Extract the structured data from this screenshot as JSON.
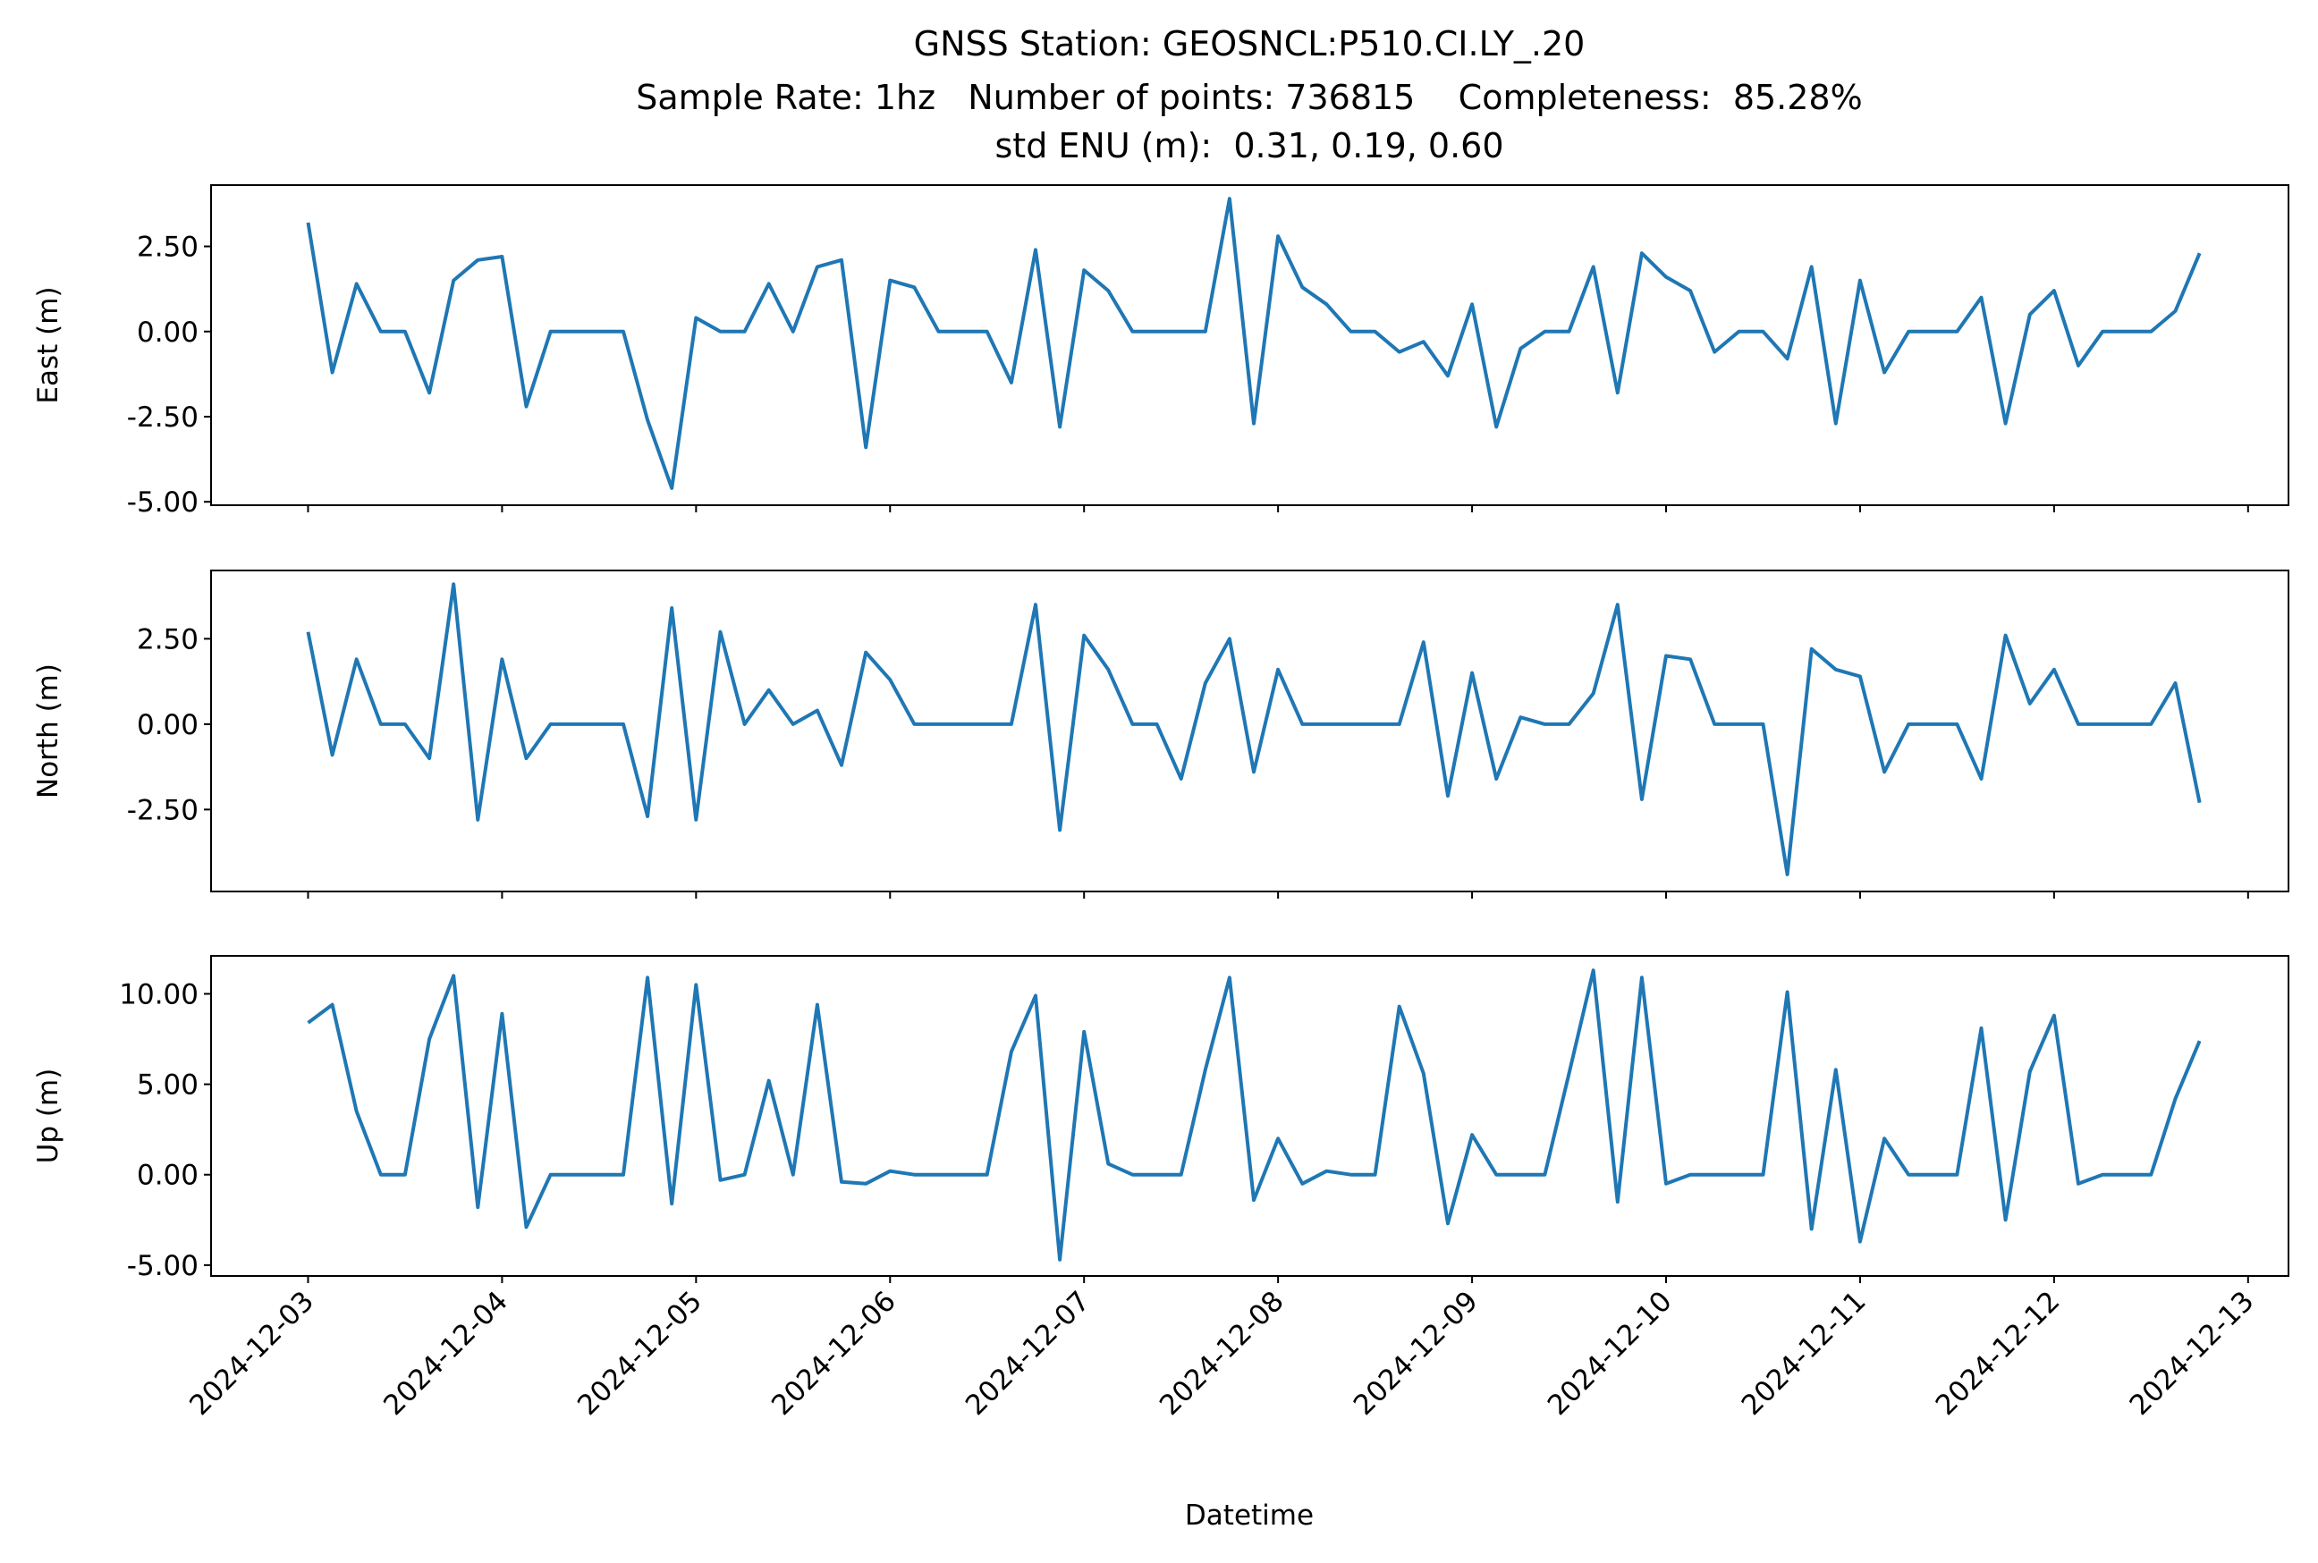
{
  "title": [
    "GNSS Station: GEOSNCL:P510.CI.LY_.20",
    "Sample Rate: 1hz   Number of points: 736815    Completeness:  85.28%",
    "std ENU (m):  0.31, 0.19, 0.60"
  ],
  "x_axis": {
    "label": "Datetime",
    "xlim": [
      "2024-12-02T12:00",
      "2024-12-13T05:00"
    ],
    "xticks": [
      "2024-12-03",
      "2024-12-04",
      "2024-12-05",
      "2024-12-06",
      "2024-12-07",
      "2024-12-08",
      "2024-12-09",
      "2024-12-10",
      "2024-12-11",
      "2024-12-12",
      "2024-12-13"
    ],
    "x": [
      "2024-12-03T00:00",
      "2024-12-03T03:00",
      "2024-12-03T06:00",
      "2024-12-03T09:00",
      "2024-12-03T12:00",
      "2024-12-03T15:00",
      "2024-12-03T18:00",
      "2024-12-03T21:00",
      "2024-12-04T00:00",
      "2024-12-04T03:00",
      "2024-12-04T06:00",
      "2024-12-04T09:00",
      "2024-12-04T12:00",
      "2024-12-04T15:00",
      "2024-12-04T18:00",
      "2024-12-04T21:00",
      "2024-12-05T00:00",
      "2024-12-05T03:00",
      "2024-12-05T06:00",
      "2024-12-05T09:00",
      "2024-12-05T12:00",
      "2024-12-05T15:00",
      "2024-12-05T18:00",
      "2024-12-05T21:00",
      "2024-12-06T00:00",
      "2024-12-06T03:00",
      "2024-12-06T06:00",
      "2024-12-06T09:00",
      "2024-12-06T12:00",
      "2024-12-06T15:00",
      "2024-12-06T18:00",
      "2024-12-06T21:00",
      "2024-12-07T00:00",
      "2024-12-07T03:00",
      "2024-12-07T06:00",
      "2024-12-07T09:00",
      "2024-12-07T12:00",
      "2024-12-07T15:00",
      "2024-12-07T18:00",
      "2024-12-07T21:00",
      "2024-12-08T00:00",
      "2024-12-08T03:00",
      "2024-12-08T06:00",
      "2024-12-08T09:00",
      "2024-12-08T12:00",
      "2024-12-08T15:00",
      "2024-12-08T18:00",
      "2024-12-08T21:00",
      "2024-12-09T00:00",
      "2024-12-09T03:00",
      "2024-12-09T06:00",
      "2024-12-09T09:00",
      "2024-12-09T12:00",
      "2024-12-09T15:00",
      "2024-12-09T18:00",
      "2024-12-09T21:00",
      "2024-12-10T00:00",
      "2024-12-10T03:00",
      "2024-12-10T06:00",
      "2024-12-10T09:00",
      "2024-12-10T12:00",
      "2024-12-10T15:00",
      "2024-12-10T18:00",
      "2024-12-10T21:00",
      "2024-12-11T00:00",
      "2024-12-11T03:00",
      "2024-12-11T06:00",
      "2024-12-11T09:00",
      "2024-12-11T12:00",
      "2024-12-11T15:00",
      "2024-12-11T18:00",
      "2024-12-11T21:00",
      "2024-12-12T00:00",
      "2024-12-12T03:00",
      "2024-12-12T06:00",
      "2024-12-12T09:00",
      "2024-12-12T12:00",
      "2024-12-12T15:00",
      "2024-12-12T18:00"
    ]
  },
  "chart_data": [
    {
      "type": "line",
      "ylabel": "East (m)",
      "color": "#1f77b4",
      "ylim": [
        -5.1,
        4.3
      ],
      "yticks": [
        {
          "value": -5,
          "label": "-5.00"
        },
        {
          "value": -2.5,
          "label": "-2.50"
        },
        {
          "value": 0,
          "label": "0.00"
        },
        {
          "value": 2.5,
          "label": "2.50"
        }
      ],
      "values": [
        3.2,
        -1.2,
        1.4,
        0,
        0,
        -1.8,
        1.5,
        2.1,
        2.2,
        -2.2,
        0,
        0,
        0,
        0,
        -2.6,
        -4.6,
        0.4,
        0,
        0,
        1.4,
        0,
        1.9,
        2.1,
        -3.4,
        1.5,
        1.3,
        0,
        0,
        0,
        -1.5,
        2.4,
        -2.8,
        1.8,
        1.2,
        0,
        0,
        0,
        0,
        3.9,
        -2.7,
        2.8,
        1.3,
        0.8,
        0,
        0,
        -0.6,
        -0.3,
        -1.3,
        0.8,
        -2.8,
        -0.5,
        0,
        0,
        1.9,
        -1.8,
        2.3,
        1.6,
        1.2,
        -0.6,
        0,
        0,
        -0.8,
        1.9,
        -2.7,
        1.5,
        -1.2,
        0,
        0,
        0,
        1.0,
        -2.7,
        0.5,
        1.2,
        -1.0,
        0,
        0,
        0,
        0.6,
        2.3
      ]
    },
    {
      "type": "line",
      "ylabel": "North (m)",
      "color": "#1f77b4",
      "ylim": [
        -4.9,
        4.5
      ],
      "yticks": [
        {
          "value": -2.5,
          "label": "-2.50"
        },
        {
          "value": 0,
          "label": "0.00"
        },
        {
          "value": 2.5,
          "label": "2.50"
        }
      ],
      "values": [
        2.7,
        -0.9,
        1.9,
        0,
        0,
        -1.0,
        4.1,
        -2.8,
        1.9,
        -1.0,
        0,
        0,
        0,
        0,
        -2.7,
        3.4,
        -2.8,
        2.7,
        0,
        1.0,
        0,
        0.4,
        -1.2,
        2.1,
        1.3,
        0,
        0,
        0,
        0,
        0,
        3.5,
        -3.1,
        2.6,
        1.6,
        0,
        0,
        -1.6,
        1.2,
        2.5,
        -1.4,
        1.6,
        0,
        0,
        0,
        0,
        0,
        2.4,
        -2.1,
        1.5,
        -1.6,
        0.2,
        0,
        0,
        0.9,
        3.5,
        -2.2,
        2.0,
        1.9,
        0,
        0,
        0,
        -4.4,
        2.2,
        1.6,
        1.4,
        -1.4,
        0,
        0,
        0,
        -1.6,
        2.6,
        0.6,
        1.6,
        0,
        0,
        0,
        0,
        1.2,
        -2.3
      ]
    },
    {
      "type": "line",
      "ylabel": "Up (m)",
      "color": "#1f77b4",
      "ylim": [
        -5.6,
        12.1
      ],
      "yticks": [
        {
          "value": -5,
          "label": "-5.00"
        },
        {
          "value": 0,
          "label": "0.00"
        },
        {
          "value": 5,
          "label": "5.00"
        },
        {
          "value": 10,
          "label": "10.00"
        }
      ],
      "values": [
        8.4,
        9.4,
        3.5,
        0,
        0,
        7.5,
        11.0,
        -1.8,
        8.9,
        -2.9,
        0,
        0,
        0,
        0,
        10.9,
        -1.6,
        10.5,
        -0.3,
        0,
        5.2,
        0,
        9.4,
        -0.4,
        -0.5,
        0.2,
        0,
        0,
        0,
        0,
        6.8,
        9.9,
        -4.7,
        7.9,
        0.6,
        0,
        0,
        0,
        5.8,
        10.9,
        -1.4,
        2.0,
        -0.5,
        0.2,
        0,
        0,
        9.3,
        5.6,
        -2.7,
        2.2,
        0,
        0,
        0,
        5.6,
        11.3,
        -1.5,
        10.9,
        -0.5,
        0,
        0,
        0,
        0,
        10.1,
        -3.0,
        5.8,
        -3.7,
        2.0,
        0,
        0,
        0,
        8.1,
        -2.5,
        5.7,
        8.8,
        -0.5,
        0,
        0,
        0,
        4.2,
        7.4
      ]
    }
  ]
}
